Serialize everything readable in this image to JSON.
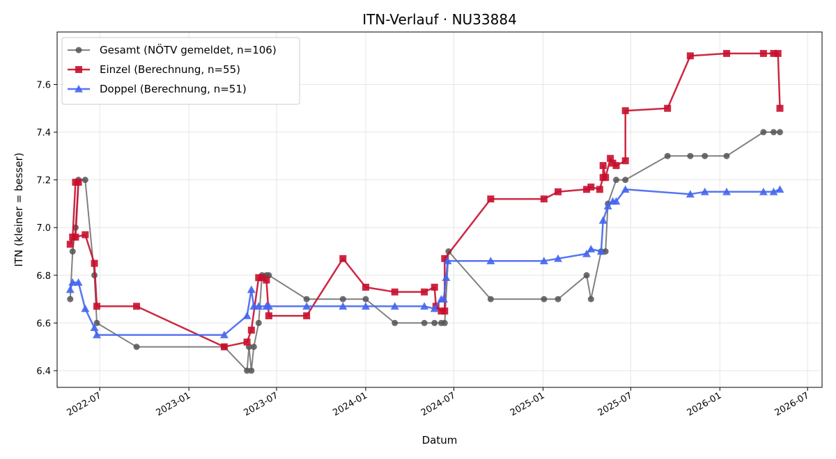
{
  "chart_data": {
    "type": "line",
    "title": "ITN-Verlauf · NU33884",
    "xlabel": "Datum",
    "ylabel": "ITN  (kleiner = besser)",
    "xlim": [
      "2022-04-04",
      "2026-07-31"
    ],
    "ylim": [
      6.33,
      7.82
    ],
    "x_ticks": [
      "2022-07",
      "2023-01",
      "2023-07",
      "2024-01",
      "2024-07",
      "2025-01",
      "2025-07",
      "2026-01",
      "2026-07"
    ],
    "y_ticks": [
      6.4,
      6.6,
      6.8,
      7.0,
      7.2,
      7.4,
      7.6
    ],
    "grid": true,
    "legend_position": "top-left",
    "series": [
      {
        "name": "Gesamt (NÖTV gemeldet, n=106)",
        "color": "#555555",
        "marker": "circle",
        "points": [
          {
            "x": "2022-05-01",
            "y": 6.7
          },
          {
            "x": "2022-05-06",
            "y": 6.9
          },
          {
            "x": "2022-05-12",
            "y": 7.0
          },
          {
            "x": "2022-05-18",
            "y": 7.2
          },
          {
            "x": "2022-06-01",
            "y": 7.2
          },
          {
            "x": "2022-06-20",
            "y": 6.8
          },
          {
            "x": "2022-06-25",
            "y": 6.6
          },
          {
            "x": "2022-09-15",
            "y": 6.5
          },
          {
            "x": "2023-03-15",
            "y": 6.5
          },
          {
            "x": "2023-05-01",
            "y": 6.4
          },
          {
            "x": "2023-05-05",
            "y": 6.5
          },
          {
            "x": "2023-05-10",
            "y": 6.4
          },
          {
            "x": "2023-05-15",
            "y": 6.5
          },
          {
            "x": "2023-05-25",
            "y": 6.6
          },
          {
            "x": "2023-06-01",
            "y": 6.8
          },
          {
            "x": "2023-06-10",
            "y": 6.8
          },
          {
            "x": "2023-06-15",
            "y": 6.8
          },
          {
            "x": "2023-09-01",
            "y": 6.7
          },
          {
            "x": "2023-11-15",
            "y": 6.7
          },
          {
            "x": "2024-01-01",
            "y": 6.7
          },
          {
            "x": "2024-03-01",
            "y": 6.6
          },
          {
            "x": "2024-05-01",
            "y": 6.6
          },
          {
            "x": "2024-05-22",
            "y": 6.6
          },
          {
            "x": "2024-06-05",
            "y": 6.6
          },
          {
            "x": "2024-06-12",
            "y": 6.6
          },
          {
            "x": "2024-06-20",
            "y": 6.9
          },
          {
            "x": "2024-09-15",
            "y": 6.7
          },
          {
            "x": "2025-01-03",
            "y": 6.7
          },
          {
            "x": "2025-02-01",
            "y": 6.7
          },
          {
            "x": "2025-04-01",
            "y": 6.8
          },
          {
            "x": "2025-04-10",
            "y": 6.7
          },
          {
            "x": "2025-05-01",
            "y": 6.9
          },
          {
            "x": "2025-05-10",
            "y": 6.9
          },
          {
            "x": "2025-05-15",
            "y": 7.1
          },
          {
            "x": "2025-06-01",
            "y": 7.2
          },
          {
            "x": "2025-06-20",
            "y": 7.2
          },
          {
            "x": "2025-09-15",
            "y": 7.3
          },
          {
            "x": "2025-11-01",
            "y": 7.3
          },
          {
            "x": "2025-12-01",
            "y": 7.3
          },
          {
            "x": "2026-01-15",
            "y": 7.3
          },
          {
            "x": "2026-04-01",
            "y": 7.4
          },
          {
            "x": "2026-04-22",
            "y": 7.4
          },
          {
            "x": "2026-05-05",
            "y": 7.4
          }
        ]
      },
      {
        "name": "Einzel (Berechnung, n=55)",
        "color": "#c8102e",
        "marker": "square",
        "points": [
          {
            "x": "2022-05-01",
            "y": 6.93
          },
          {
            "x": "2022-05-06",
            "y": 6.96
          },
          {
            "x": "2022-05-12",
            "y": 7.19
          },
          {
            "x": "2022-05-18",
            "y": 7.19
          },
          {
            "x": "2022-05-12",
            "y": 6.96
          },
          {
            "x": "2022-06-01",
            "y": 6.97
          },
          {
            "x": "2022-06-20",
            "y": 6.85
          },
          {
            "x": "2022-06-25",
            "y": 6.67
          },
          {
            "x": "2022-09-15",
            "y": 6.67
          },
          {
            "x": "2023-03-15",
            "y": 6.5
          },
          {
            "x": "2023-05-01",
            "y": 6.52
          },
          {
            "x": "2023-05-10",
            "y": 6.57
          },
          {
            "x": "2023-05-25",
            "y": 6.79
          },
          {
            "x": "2023-06-01",
            "y": 6.79
          },
          {
            "x": "2023-06-10",
            "y": 6.78
          },
          {
            "x": "2023-06-15",
            "y": 6.63
          },
          {
            "x": "2023-09-01",
            "y": 6.63
          },
          {
            "x": "2023-11-15",
            "y": 6.87
          },
          {
            "x": "2024-01-01",
            "y": 6.75
          },
          {
            "x": "2024-03-01",
            "y": 6.73
          },
          {
            "x": "2024-05-01",
            "y": 6.73
          },
          {
            "x": "2024-05-22",
            "y": 6.75
          },
          {
            "x": "2024-05-25",
            "y": 6.67
          },
          {
            "x": "2024-06-05",
            "y": 6.65
          },
          {
            "x": "2024-06-12",
            "y": 6.65
          },
          {
            "x": "2024-06-12",
            "y": 6.87
          },
          {
            "x": "2024-09-15",
            "y": 7.12
          },
          {
            "x": "2025-01-03",
            "y": 7.12
          },
          {
            "x": "2025-02-01",
            "y": 7.15
          },
          {
            "x": "2025-04-01",
            "y": 7.16
          },
          {
            "x": "2025-04-10",
            "y": 7.17
          },
          {
            "x": "2025-04-28",
            "y": 7.16
          },
          {
            "x": "2025-05-05",
            "y": 7.21
          },
          {
            "x": "2025-05-05",
            "y": 7.26
          },
          {
            "x": "2025-05-10",
            "y": 7.21
          },
          {
            "x": "2025-05-20",
            "y": 7.29
          },
          {
            "x": "2025-05-25",
            "y": 7.27
          },
          {
            "x": "2025-06-01",
            "y": 7.26
          },
          {
            "x": "2025-06-20",
            "y": 7.28
          },
          {
            "x": "2025-06-20",
            "y": 7.49
          },
          {
            "x": "2025-09-15",
            "y": 7.5
          },
          {
            "x": "2025-11-01",
            "y": 7.72
          },
          {
            "x": "2026-01-15",
            "y": 7.73
          },
          {
            "x": "2026-04-01",
            "y": 7.73
          },
          {
            "x": "2026-04-22",
            "y": 7.73
          },
          {
            "x": "2026-05-01",
            "y": 7.73
          },
          {
            "x": "2026-05-05",
            "y": 7.5
          }
        ]
      },
      {
        "name": "Doppel (Berechnung, n=51)",
        "color": "#4466ee",
        "marker": "triangle",
        "points": [
          {
            "x": "2022-05-01",
            "y": 6.74
          },
          {
            "x": "2022-05-06",
            "y": 6.77
          },
          {
            "x": "2022-05-18",
            "y": 6.77
          },
          {
            "x": "2022-06-01",
            "y": 6.66
          },
          {
            "x": "2022-06-20",
            "y": 6.58
          },
          {
            "x": "2022-06-25",
            "y": 6.55
          },
          {
            "x": "2023-03-15",
            "y": 6.55
          },
          {
            "x": "2023-05-01",
            "y": 6.63
          },
          {
            "x": "2023-05-10",
            "y": 6.74
          },
          {
            "x": "2023-05-15",
            "y": 6.67
          },
          {
            "x": "2023-05-25",
            "y": 6.67
          },
          {
            "x": "2023-06-10",
            "y": 6.67
          },
          {
            "x": "2023-06-15",
            "y": 6.67
          },
          {
            "x": "2023-09-01",
            "y": 6.67
          },
          {
            "x": "2023-11-15",
            "y": 6.67
          },
          {
            "x": "2024-01-01",
            "y": 6.67
          },
          {
            "x": "2024-03-01",
            "y": 6.67
          },
          {
            "x": "2024-05-01",
            "y": 6.67
          },
          {
            "x": "2024-05-22",
            "y": 6.66
          },
          {
            "x": "2024-06-05",
            "y": 6.7
          },
          {
            "x": "2024-06-10",
            "y": 6.7
          },
          {
            "x": "2024-06-15",
            "y": 6.79
          },
          {
            "x": "2024-06-18",
            "y": 6.86
          },
          {
            "x": "2024-09-15",
            "y": 6.86
          },
          {
            "x": "2025-01-03",
            "y": 6.86
          },
          {
            "x": "2025-02-01",
            "y": 6.87
          },
          {
            "x": "2025-04-01",
            "y": 6.89
          },
          {
            "x": "2025-04-10",
            "y": 6.91
          },
          {
            "x": "2025-05-01",
            "y": 6.9
          },
          {
            "x": "2025-05-05",
            "y": 7.03
          },
          {
            "x": "2025-05-15",
            "y": 7.09
          },
          {
            "x": "2025-05-25",
            "y": 7.11
          },
          {
            "x": "2025-06-01",
            "y": 7.11
          },
          {
            "x": "2025-06-20",
            "y": 7.16
          },
          {
            "x": "2025-11-01",
            "y": 7.14
          },
          {
            "x": "2025-12-01",
            "y": 7.15
          },
          {
            "x": "2026-01-15",
            "y": 7.15
          },
          {
            "x": "2026-04-01",
            "y": 7.15
          },
          {
            "x": "2026-04-22",
            "y": 7.15
          },
          {
            "x": "2026-05-05",
            "y": 7.16
          }
        ]
      }
    ]
  }
}
